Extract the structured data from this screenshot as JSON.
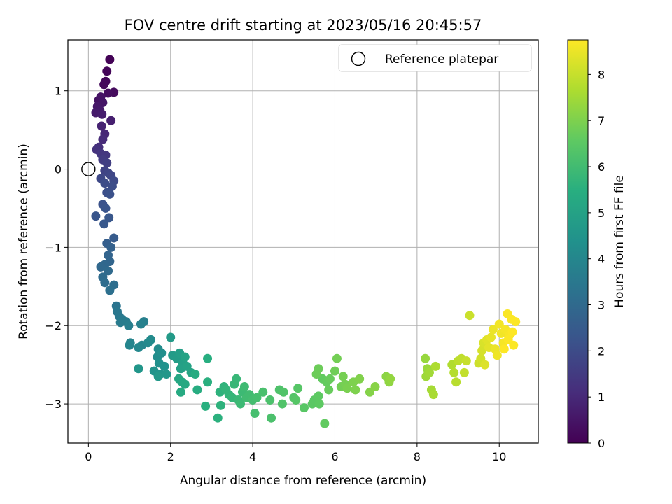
{
  "chart_data": {
    "type": "scatter",
    "title": "FOV centre drift starting at 2023/05/16 20:45:57",
    "xlabel": "Angular distance from reference (arcmin)",
    "ylabel": "Rotation from reference (arcmin)",
    "xlim": [
      -0.5,
      10.95
    ],
    "ylim": [
      -3.5,
      1.65
    ],
    "xticks": [
      0,
      2,
      4,
      6,
      8,
      10
    ],
    "yticks": [
      -3,
      -2,
      -1,
      0,
      1
    ],
    "grid": true,
    "legend": {
      "placement": "top-right",
      "entries": [
        "Reference platepar"
      ]
    },
    "reference_point": {
      "x": 0,
      "y": 0,
      "label": "Reference platepar"
    },
    "colorbar": {
      "label": "Hours from first FF file",
      "range": [
        0,
        8.75
      ],
      "ticks": [
        0,
        1,
        2,
        3,
        4,
        5,
        6,
        7,
        8
      ],
      "colormap": "viridis"
    },
    "points_xy_hours": [
      [
        0.52,
        1.4,
        0.05
      ],
      [
        0.45,
        1.25,
        0.1
      ],
      [
        0.42,
        1.12,
        0.15
      ],
      [
        0.38,
        1.08,
        0.2
      ],
      [
        0.62,
        0.98,
        0.25
      ],
      [
        0.48,
        0.97,
        0.3
      ],
      [
        0.25,
        0.88,
        0.4
      ],
      [
        0.3,
        0.92,
        0.45
      ],
      [
        0.35,
        0.85,
        0.5
      ],
      [
        0.22,
        0.8,
        0.55
      ],
      [
        0.28,
        0.75,
        0.6
      ],
      [
        0.18,
        0.72,
        0.65
      ],
      [
        0.33,
        0.7,
        0.7
      ],
      [
        0.55,
        0.62,
        0.75
      ],
      [
        0.32,
        0.55,
        0.85
      ],
      [
        0.4,
        0.45,
        0.95
      ],
      [
        0.35,
        0.38,
        1.05
      ],
      [
        0.25,
        0.28,
        1.15
      ],
      [
        0.2,
        0.25,
        1.25
      ],
      [
        0.3,
        0.2,
        1.35
      ],
      [
        0.42,
        0.18,
        1.4
      ],
      [
        0.35,
        0.12,
        1.5
      ],
      [
        0.45,
        0.08,
        1.6
      ],
      [
        0.4,
        -0.02,
        1.7
      ],
      [
        0.48,
        -0.05,
        1.8
      ],
      [
        0.55,
        -0.08,
        1.85
      ],
      [
        0.3,
        -0.12,
        1.9
      ],
      [
        0.62,
        -0.15,
        1.95
      ],
      [
        0.4,
        -0.18,
        2.0
      ],
      [
        0.58,
        -0.22,
        2.05
      ],
      [
        0.45,
        -0.3,
        2.1
      ],
      [
        0.52,
        -0.32,
        2.15
      ],
      [
        0.35,
        -0.45,
        2.2
      ],
      [
        0.42,
        -0.5,
        2.25
      ],
      [
        0.18,
        -0.6,
        2.3
      ],
      [
        0.5,
        -0.62,
        2.35
      ],
      [
        0.38,
        -0.7,
        2.4
      ],
      [
        0.62,
        -0.88,
        2.5
      ],
      [
        0.45,
        -0.95,
        2.6
      ],
      [
        0.55,
        -1.0,
        2.7
      ],
      [
        0.48,
        -1.1,
        2.8
      ],
      [
        0.52,
        -1.18,
        2.85
      ],
      [
        0.4,
        -1.22,
        2.9
      ],
      [
        0.3,
        -1.25,
        2.95
      ],
      [
        0.48,
        -1.3,
        3.0
      ],
      [
        0.35,
        -1.38,
        3.05
      ],
      [
        0.4,
        -1.45,
        3.1
      ],
      [
        0.62,
        -1.48,
        3.15
      ],
      [
        0.52,
        -1.55,
        3.2
      ],
      [
        0.68,
        -1.75,
        3.35
      ],
      [
        0.7,
        -1.82,
        3.45
      ],
      [
        0.75,
        -1.88,
        3.5
      ],
      [
        0.82,
        -1.92,
        3.55
      ],
      [
        0.78,
        -1.96,
        3.6
      ],
      [
        0.92,
        -1.95,
        3.65
      ],
      [
        0.98,
        -2.0,
        3.7
      ],
      [
        1.35,
        -1.95,
        3.75
      ],
      [
        1.28,
        -1.98,
        3.8
      ],
      [
        1.02,
        -2.22,
        3.9
      ],
      [
        1.0,
        -2.25,
        3.95
      ],
      [
        1.3,
        -2.25,
        4.0
      ],
      [
        1.22,
        -2.28,
        4.05
      ],
      [
        1.45,
        -2.22,
        4.1
      ],
      [
        1.52,
        -2.18,
        4.15
      ],
      [
        1.7,
        -2.3,
        4.2
      ],
      [
        1.68,
        -2.4,
        4.25
      ],
      [
        1.78,
        -2.35,
        4.3
      ],
      [
        1.72,
        -2.48,
        4.35
      ],
      [
        1.85,
        -2.52,
        4.4
      ],
      [
        1.6,
        -2.58,
        4.45
      ],
      [
        1.75,
        -2.62,
        4.5
      ],
      [
        1.22,
        -2.55,
        4.55
      ],
      [
        1.9,
        -2.62,
        4.6
      ],
      [
        1.7,
        -2.65,
        4.65
      ],
      [
        2.0,
        -2.15,
        4.7
      ],
      [
        2.05,
        -2.38,
        4.75
      ],
      [
        2.15,
        -2.42,
        4.8
      ],
      [
        2.22,
        -2.35,
        4.85
      ],
      [
        2.3,
        -2.48,
        4.9
      ],
      [
        2.25,
        -2.55,
        4.95
      ],
      [
        2.4,
        -2.52,
        5.0
      ],
      [
        2.35,
        -2.4,
        5.05
      ],
      [
        2.5,
        -2.6,
        5.1
      ],
      [
        2.2,
        -2.68,
        5.15
      ],
      [
        2.28,
        -2.72,
        5.2
      ],
      [
        2.35,
        -2.75,
        5.25
      ],
      [
        2.25,
        -2.85,
        5.3
      ],
      [
        2.6,
        -2.62,
        5.35
      ],
      [
        2.65,
        -2.82,
        5.4
      ],
      [
        2.9,
        -2.42,
        5.45
      ],
      [
        2.9,
        -2.72,
        5.5
      ],
      [
        2.85,
        -3.03,
        5.5
      ],
      [
        3.15,
        -3.18,
        5.55
      ],
      [
        3.2,
        -2.85,
        5.6
      ],
      [
        3.22,
        -3.02,
        5.6
      ],
      [
        3.3,
        -2.78,
        5.65
      ],
      [
        3.35,
        -2.82,
        5.7
      ],
      [
        3.42,
        -2.88,
        5.7
      ],
      [
        3.5,
        -2.92,
        5.75
      ],
      [
        3.55,
        -2.75,
        5.8
      ],
      [
        3.6,
        -2.68,
        5.8
      ],
      [
        3.65,
        -2.95,
        5.85
      ],
      [
        3.7,
        -3.0,
        5.9
      ],
      [
        3.75,
        -2.85,
        5.9
      ],
      [
        3.8,
        -2.78,
        5.95
      ],
      [
        3.85,
        -2.92,
        6.0
      ],
      [
        3.92,
        -2.88,
        6.0
      ],
      [
        4.0,
        -2.95,
        6.05
      ],
      [
        4.05,
        -3.12,
        6.1
      ],
      [
        4.1,
        -2.92,
        6.1
      ],
      [
        4.25,
        -2.85,
        6.15
      ],
      [
        4.42,
        -2.95,
        6.2
      ],
      [
        4.45,
        -3.18,
        6.2
      ],
      [
        4.65,
        -2.82,
        6.25
      ],
      [
        4.75,
        -2.85,
        6.3
      ],
      [
        4.72,
        -3.0,
        6.3
      ],
      [
        5.0,
        -2.92,
        6.35
      ],
      [
        5.05,
        -2.95,
        6.4
      ],
      [
        5.1,
        -2.8,
        6.4
      ],
      [
        5.25,
        -3.05,
        6.45
      ],
      [
        5.45,
        -3.0,
        6.5
      ],
      [
        5.5,
        -2.95,
        6.5
      ],
      [
        5.6,
        -2.9,
        6.55
      ],
      [
        5.62,
        -3.0,
        6.55
      ],
      [
        5.7,
        -2.68,
        6.6
      ],
      [
        5.75,
        -3.25,
        6.6
      ],
      [
        5.8,
        -2.72,
        6.65
      ],
      [
        5.88,
        -2.68,
        6.7
      ],
      [
        5.85,
        -2.82,
        6.7
      ],
      [
        5.55,
        -2.62,
        6.75
      ],
      [
        5.6,
        -2.55,
        6.75
      ],
      [
        6.0,
        -2.58,
        6.8
      ],
      [
        6.05,
        -2.42,
        6.85
      ],
      [
        6.15,
        -2.78,
        6.85
      ],
      [
        6.25,
        -2.75,
        6.9
      ],
      [
        6.2,
        -2.65,
        6.9
      ],
      [
        6.3,
        -2.8,
        6.95
      ],
      [
        6.45,
        -2.72,
        7.0
      ],
      [
        6.5,
        -2.82,
        7.0
      ],
      [
        6.6,
        -2.68,
        7.05
      ],
      [
        6.85,
        -2.85,
        7.1
      ],
      [
        6.98,
        -2.78,
        7.15
      ],
      [
        7.25,
        -2.65,
        7.2
      ],
      [
        7.32,
        -2.72,
        7.25
      ],
      [
        7.35,
        -2.68,
        7.3
      ],
      [
        8.2,
        -2.42,
        7.35
      ],
      [
        8.25,
        -2.55,
        7.4
      ],
      [
        8.22,
        -2.65,
        7.45
      ],
      [
        8.3,
        -2.6,
        7.5
      ],
      [
        8.35,
        -2.82,
        7.55
      ],
      [
        8.4,
        -2.88,
        7.6
      ],
      [
        8.45,
        -2.52,
        7.65
      ],
      [
        8.85,
        -2.5,
        7.7
      ],
      [
        8.9,
        -2.6,
        7.75
      ],
      [
        8.95,
        -2.72,
        7.8
      ],
      [
        9.0,
        -2.45,
        7.85
      ],
      [
        9.08,
        -2.42,
        7.9
      ],
      [
        9.15,
        -2.6,
        7.95
      ],
      [
        9.2,
        -2.45,
        8.0
      ],
      [
        9.28,
        -1.87,
        8.05
      ],
      [
        9.5,
        -2.48,
        8.1
      ],
      [
        9.55,
        -2.42,
        8.15
      ],
      [
        9.58,
        -2.32,
        8.2
      ],
      [
        9.62,
        -2.22,
        8.25
      ],
      [
        9.65,
        -2.5,
        8.3
      ],
      [
        9.7,
        -2.18,
        8.35
      ],
      [
        9.75,
        -2.28,
        8.4
      ],
      [
        9.8,
        -2.15,
        8.45
      ],
      [
        9.85,
        -2.05,
        8.5
      ],
      [
        9.9,
        -2.3,
        8.5
      ],
      [
        9.95,
        -2.38,
        8.55
      ],
      [
        10.0,
        -1.98,
        8.6
      ],
      [
        10.05,
        -2.1,
        8.6
      ],
      [
        10.1,
        -2.22,
        8.65
      ],
      [
        10.15,
        -2.05,
        8.65
      ],
      [
        10.2,
        -1.85,
        8.7
      ],
      [
        10.25,
        -2.12,
        8.7
      ],
      [
        10.3,
        -1.92,
        8.72
      ],
      [
        10.35,
        -2.25,
        8.72
      ],
      [
        10.4,
        -1.95,
        8.74
      ],
      [
        10.22,
        -2.18,
        8.74
      ],
      [
        10.32,
        -2.08,
        8.75
      ],
      [
        10.12,
        -2.3,
        8.75
      ]
    ]
  }
}
